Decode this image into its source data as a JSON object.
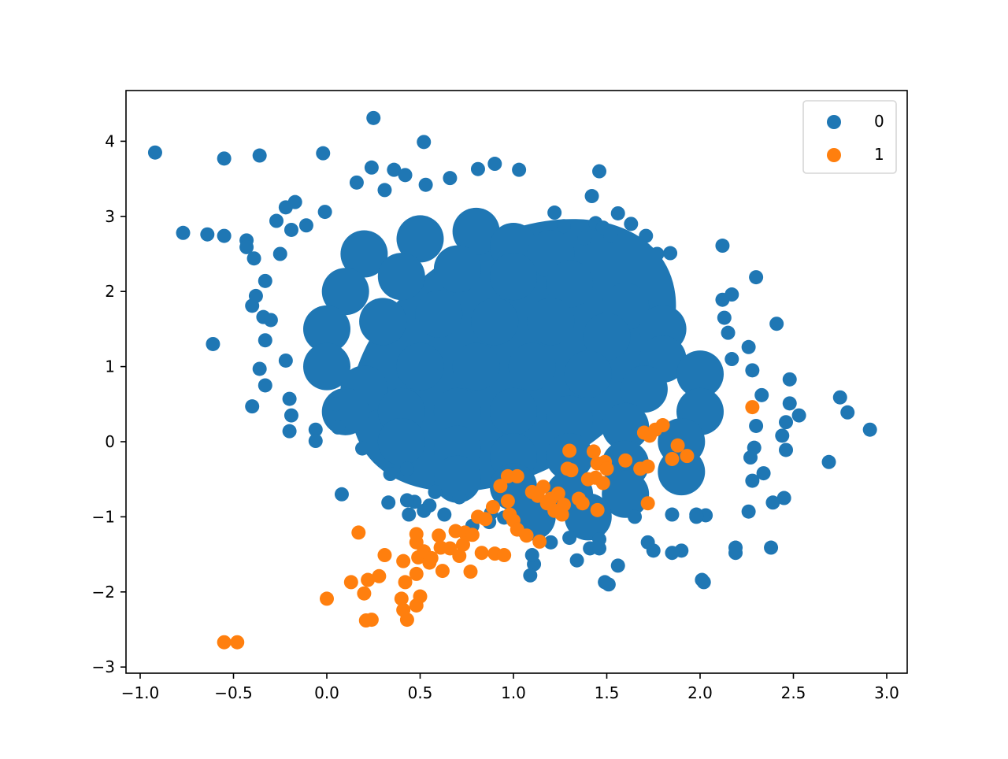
{
  "chart_data": {
    "type": "scatter",
    "title": "",
    "xlabel": "",
    "ylabel": "",
    "xlim": [
      -1.1,
      3.1
    ],
    "ylim": [
      -3.08,
      4.68
    ],
    "grid": false,
    "legend": {
      "position": "upper right",
      "entries": [
        {
          "label": "0",
          "color": "#1f77b4"
        },
        {
          "label": "1",
          "color": "#ff7f0e"
        }
      ]
    },
    "x_ticks": [
      -1.0,
      -0.5,
      0.0,
      0.5,
      1.0,
      1.5,
      2.0,
      2.5,
      3.0
    ],
    "x_tick_labels": [
      "−1.0",
      "−0.5",
      "0.0",
      "0.5",
      "1.0",
      "1.5",
      "2.0",
      "2.5",
      "3.0"
    ],
    "y_ticks": [
      4,
      3,
      2,
      1,
      0,
      -1,
      -2,
      -3
    ],
    "y_tick_labels": [
      "4",
      "3",
      "2",
      "1",
      "0",
      "−1",
      "−2",
      "−3"
    ],
    "marker_radius_px": 9,
    "series": [
      {
        "name": "0",
        "color": "#1f77b4",
        "description": "dense cluster (~10000 points) centered near (1.0, 1.0), spread roughly x in [-0.9, 2.9], y in [-1.9, 4.3], negatively correlated",
        "core_ellipse": {
          "cx": 1.0,
          "cy": 1.15,
          "rx": 0.95,
          "ry": 1.55,
          "angle_deg": -32
        },
        "points": [
          [
            -0.92,
            3.85
          ],
          [
            -0.55,
            3.77
          ],
          [
            -0.36,
            3.81
          ],
          [
            -0.02,
            3.84
          ],
          [
            0.25,
            4.31
          ],
          [
            0.52,
            3.99
          ],
          [
            0.24,
            3.65
          ],
          [
            0.36,
            3.62
          ],
          [
            0.42,
            3.55
          ],
          [
            0.66,
            3.51
          ],
          [
            0.81,
            3.63
          ],
          [
            0.9,
            3.7
          ],
          [
            1.03,
            3.62
          ],
          [
            1.46,
            3.6
          ],
          [
            1.42,
            3.27
          ],
          [
            0.16,
            3.45
          ],
          [
            0.53,
            3.42
          ],
          [
            0.31,
            3.35
          ],
          [
            -0.77,
            2.78
          ],
          [
            -0.64,
            2.76
          ],
          [
            -0.55,
            2.74
          ],
          [
            -0.43,
            2.68
          ],
          [
            -0.43,
            2.59
          ],
          [
            -0.39,
            2.44
          ],
          [
            -0.27,
            2.94
          ],
          [
            -0.17,
            3.19
          ],
          [
            -0.22,
            3.12
          ],
          [
            -0.01,
            3.06
          ],
          [
            -0.11,
            2.88
          ],
          [
            -0.19,
            2.82
          ],
          [
            -0.25,
            2.5
          ],
          [
            -0.33,
            2.14
          ],
          [
            -0.4,
            1.81
          ],
          [
            -0.38,
            1.94
          ],
          [
            -0.34,
            1.66
          ],
          [
            -0.3,
            1.62
          ],
          [
            -0.61,
            1.3
          ],
          [
            -0.33,
            1.35
          ],
          [
            -0.36,
            0.97
          ],
          [
            -0.33,
            0.75
          ],
          [
            -0.4,
            0.47
          ],
          [
            -0.22,
            1.08
          ],
          [
            -0.2,
            0.57
          ],
          [
            -0.19,
            0.35
          ],
          [
            -0.2,
            0.14
          ],
          [
            -0.06,
            0.16
          ],
          [
            -0.06,
            0.01
          ],
          [
            0.08,
            -0.7
          ],
          [
            1.22,
            3.05
          ],
          [
            1.56,
            3.04
          ],
          [
            1.27,
            2.87
          ],
          [
            1.44,
            2.91
          ],
          [
            1.48,
            2.85
          ],
          [
            1.63,
            2.9
          ],
          [
            1.71,
            2.74
          ],
          [
            1.77,
            2.5
          ],
          [
            1.84,
            2.51
          ],
          [
            1.52,
            2.75
          ],
          [
            1.38,
            2.71
          ],
          [
            2.12,
            2.61
          ],
          [
            2.3,
            2.19
          ],
          [
            2.17,
            1.96
          ],
          [
            2.12,
            1.89
          ],
          [
            2.13,
            1.65
          ],
          [
            2.15,
            1.45
          ],
          [
            2.41,
            1.57
          ],
          [
            2.26,
            1.26
          ],
          [
            2.17,
            1.1
          ],
          [
            2.28,
            0.95
          ],
          [
            2.33,
            0.62
          ],
          [
            2.48,
            0.83
          ],
          [
            2.48,
            0.51
          ],
          [
            2.53,
            0.35
          ],
          [
            2.75,
            0.59
          ],
          [
            2.79,
            0.39
          ],
          [
            2.91,
            0.16
          ],
          [
            2.46,
            0.26
          ],
          [
            2.44,
            0.08
          ],
          [
            2.46,
            -0.11
          ],
          [
            2.29,
            -0.08
          ],
          [
            2.27,
            -0.21
          ],
          [
            2.3,
            0.21
          ],
          [
            2.34,
            -0.42
          ],
          [
            2.28,
            -0.52
          ],
          [
            2.45,
            -0.75
          ],
          [
            2.39,
            -0.81
          ],
          [
            2.26,
            -0.93
          ],
          [
            2.69,
            -0.27
          ],
          [
            2.38,
            -1.41
          ],
          [
            2.19,
            -1.41
          ],
          [
            2.19,
            -1.48
          ],
          [
            2.01,
            -1.84
          ],
          [
            2.02,
            -1.87
          ],
          [
            1.9,
            -1.45
          ],
          [
            1.85,
            -1.48
          ],
          [
            2.03,
            -0.98
          ],
          [
            1.98,
            -0.97
          ],
          [
            1.49,
            -1.87
          ],
          [
            1.51,
            -1.9
          ],
          [
            1.56,
            -1.65
          ],
          [
            1.46,
            -1.3
          ],
          [
            1.41,
            -1.42
          ],
          [
            1.46,
            -1.42
          ],
          [
            1.34,
            -1.58
          ],
          [
            1.3,
            -1.28
          ],
          [
            1.2,
            -1.34
          ],
          [
            1.11,
            -1.63
          ],
          [
            1.09,
            -1.78
          ],
          [
            1.1,
            -1.51
          ],
          [
            1.75,
            -1.45
          ],
          [
            1.72,
            -1.34
          ],
          [
            0.78,
            -1.12
          ],
          [
            0.63,
            -0.97
          ],
          [
            0.55,
            -0.85
          ],
          [
            0.47,
            -0.8
          ],
          [
            0.43,
            -0.78
          ],
          [
            0.33,
            -0.81
          ],
          [
            0.44,
            -0.97
          ],
          [
            0.52,
            -0.92
          ],
          [
            0.34,
            -0.43
          ],
          [
            0.05,
            0.5
          ],
          [
            0.06,
            0.19
          ],
          [
            0.19,
            -0.09
          ],
          [
            0.43,
            -0.36
          ],
          [
            0.58,
            -0.67
          ],
          [
            0.71,
            -0.74
          ],
          [
            0.87,
            -1.07
          ],
          [
            0.95,
            -1.01
          ],
          [
            0.88,
            -0.95
          ],
          [
            1.65,
            -1.0
          ],
          [
            1.85,
            -0.97
          ],
          [
            1.98,
            -1.0
          ]
        ],
        "core_fill_points": [
          [
            0.2,
            2.5
          ],
          [
            0.5,
            2.7
          ],
          [
            0.8,
            2.8
          ],
          [
            1.0,
            2.6
          ],
          [
            1.2,
            2.5
          ],
          [
            0.1,
            2.0
          ],
          [
            0.4,
            2.2
          ],
          [
            0.7,
            2.3
          ],
          [
            1.0,
            2.2
          ],
          [
            1.3,
            2.1
          ],
          [
            1.6,
            1.8
          ],
          [
            1.8,
            1.5
          ],
          [
            0.0,
            1.5
          ],
          [
            0.3,
            1.6
          ],
          [
            0.6,
            1.7
          ],
          [
            0.9,
            1.6
          ],
          [
            1.2,
            1.6
          ],
          [
            1.5,
            1.4
          ],
          [
            1.8,
            1.1
          ],
          [
            2.0,
            0.9
          ],
          [
            0.0,
            1.0
          ],
          [
            0.2,
            0.7
          ],
          [
            0.5,
            1.0
          ],
          [
            0.8,
            1.0
          ],
          [
            1.1,
            1.0
          ],
          [
            1.4,
            0.9
          ],
          [
            1.7,
            0.7
          ],
          [
            2.0,
            0.4
          ],
          [
            0.1,
            0.4
          ],
          [
            0.4,
            0.4
          ],
          [
            0.7,
            0.4
          ],
          [
            1.0,
            0.4
          ],
          [
            1.3,
            0.3
          ],
          [
            1.6,
            0.2
          ],
          [
            1.9,
            0.0
          ],
          [
            0.4,
            0.0
          ],
          [
            0.7,
            -0.1
          ],
          [
            1.0,
            -0.2
          ],
          [
            1.3,
            -0.2
          ],
          [
            1.6,
            -0.3
          ],
          [
            1.9,
            -0.4
          ],
          [
            0.7,
            -0.5
          ],
          [
            1.0,
            -0.6
          ],
          [
            1.3,
            -0.7
          ],
          [
            1.6,
            -0.7
          ],
          [
            1.1,
            -1.0
          ],
          [
            1.4,
            -1.0
          ]
        ]
      },
      {
        "name": "1",
        "color": "#ff7f0e",
        "points": [
          [
            -0.55,
            -2.67
          ],
          [
            -0.48,
            -2.67
          ],
          [
            0.0,
            -2.09
          ],
          [
            0.13,
            -1.87
          ],
          [
            0.17,
            -1.21
          ],
          [
            0.2,
            -2.02
          ],
          [
            0.21,
            -2.38
          ],
          [
            0.24,
            -2.37
          ],
          [
            0.22,
            -1.84
          ],
          [
            0.28,
            -1.79
          ],
          [
            0.31,
            -1.51
          ],
          [
            0.4,
            -2.09
          ],
          [
            0.41,
            -2.24
          ],
          [
            0.43,
            -2.37
          ],
          [
            0.42,
            -1.87
          ],
          [
            0.41,
            -1.59
          ],
          [
            0.48,
            -2.18
          ],
          [
            0.5,
            -2.06
          ],
          [
            0.48,
            -1.76
          ],
          [
            0.49,
            -1.54
          ],
          [
            0.48,
            -1.34
          ],
          [
            0.48,
            -1.23
          ],
          [
            0.52,
            -1.46
          ],
          [
            0.55,
            -1.61
          ],
          [
            0.56,
            -1.55
          ],
          [
            0.61,
            -1.41
          ],
          [
            0.6,
            -1.25
          ],
          [
            0.62,
            -1.72
          ],
          [
            0.66,
            -1.42
          ],
          [
            0.69,
            -1.19
          ],
          [
            0.71,
            -1.52
          ],
          [
            0.73,
            -1.37
          ],
          [
            0.74,
            -1.21
          ],
          [
            0.77,
            -1.73
          ],
          [
            0.78,
            -1.24
          ],
          [
            0.81,
            -1.0
          ],
          [
            0.83,
            -1.48
          ],
          [
            0.85,
            -1.03
          ],
          [
            0.89,
            -0.87
          ],
          [
            0.9,
            -1.49
          ],
          [
            0.93,
            -0.59
          ],
          [
            0.95,
            -1.51
          ],
          [
            0.97,
            -0.46
          ],
          [
            0.97,
            -0.79
          ],
          [
            0.98,
            -0.97
          ],
          [
            1.0,
            -1.05
          ],
          [
            1.02,
            -0.46
          ],
          [
            1.02,
            -1.17
          ],
          [
            1.07,
            -1.25
          ],
          [
            1.1,
            -0.67
          ],
          [
            1.13,
            -0.72
          ],
          [
            1.14,
            -1.33
          ],
          [
            1.16,
            -0.6
          ],
          [
            1.18,
            -0.82
          ],
          [
            1.2,
            -0.76
          ],
          [
            1.22,
            -0.92
          ],
          [
            1.24,
            -0.69
          ],
          [
            1.26,
            -0.97
          ],
          [
            1.27,
            -0.84
          ],
          [
            1.29,
            -0.36
          ],
          [
            1.3,
            -0.12
          ],
          [
            1.31,
            -0.38
          ],
          [
            1.35,
            -0.76
          ],
          [
            1.37,
            -0.82
          ],
          [
            1.4,
            -0.5
          ],
          [
            1.43,
            -0.13
          ],
          [
            1.44,
            -0.48
          ],
          [
            1.45,
            -0.29
          ],
          [
            1.45,
            -0.91
          ],
          [
            1.48,
            -0.55
          ],
          [
            1.49,
            -0.27
          ],
          [
            1.5,
            -0.36
          ],
          [
            1.6,
            -0.25
          ],
          [
            1.68,
            -0.36
          ],
          [
            1.7,
            0.12
          ],
          [
            1.72,
            -0.33
          ],
          [
            1.72,
            -0.82
          ],
          [
            1.73,
            0.08
          ],
          [
            1.76,
            0.16
          ],
          [
            1.8,
            0.22
          ],
          [
            1.85,
            -0.23
          ],
          [
            1.88,
            -0.05
          ],
          [
            1.93,
            -0.19
          ],
          [
            2.28,
            0.46
          ]
        ]
      }
    ]
  }
}
